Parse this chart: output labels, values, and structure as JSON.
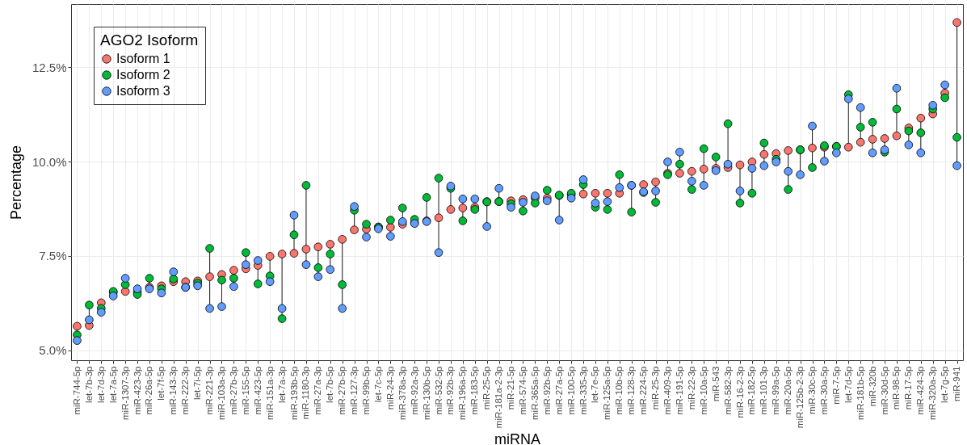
{
  "chart_data": {
    "type": "scatter",
    "xlabel": "miRNA",
    "ylabel": "Percentage",
    "legend_title": "AGO2 Isoform",
    "legend": "top left",
    "grid": true,
    "marker": "circle",
    "categories": [
      "miR-744-5p",
      "let-7b-3p",
      "let-7d-3p",
      "let-7a-5p",
      "miR-1307-3p",
      "miR-423-3p",
      "miR-26a-5p",
      "let-7f-5p",
      "miR-143-3p",
      "miR-222-3p",
      "let-7i-5p",
      "miR-221-3p",
      "miR-103a-3p",
      "miR-27b-3p",
      "miR-155-5p",
      "miR-423-5p",
      "miR-151a-3p",
      "let-7a-3p",
      "miR-193b-5p",
      "miR-1180-3p",
      "miR-27a-3p",
      "let-7b-5p",
      "miR-27b-5p",
      "miR-127-3p",
      "miR-99b-5p",
      "let-7c-5p",
      "miR-24-3p",
      "miR-378a-3p",
      "miR-92a-3p",
      "miR-130b-5p",
      "miR-532-5p",
      "miR-92b-3p",
      "miR-196a-5p",
      "miR-183-5p",
      "miR-25-5p",
      "miR-181a-2-3p",
      "miR-21-5p",
      "miR-574-5p",
      "miR-365a-5p",
      "miR-92b-5p",
      "miR-27a-5p",
      "miR-100-5p",
      "miR-335-3p",
      "let-7e-5p",
      "miR-125a-5p",
      "miR-10b-5p",
      "miR-128-3p",
      "miR-224-5p",
      "miR-25-3p",
      "miR-409-3p",
      "miR-191-5p",
      "miR-22-3p",
      "miR-10a-5p",
      "miR-543",
      "miR-582-3p",
      "miR-16-2-3p",
      "miR-182-5p",
      "miR-101-3p",
      "miR-99a-5p",
      "miR-20a-5p",
      "miR-125b-2-3p",
      "miR-30c-5p",
      "miR-30a-5p",
      "miR-7-5p",
      "let-7d-5p",
      "miR-181b-5p",
      "miR-320b",
      "miR-30d-5p",
      "miR-98-5p",
      "miR-17-5p",
      "miR-424-3p",
      "miR-320a-3p",
      "let-7g-5p",
      "miR-941"
    ],
    "ylim": [
      4.74,
      14.17
    ],
    "yticks": [
      {
        "value": 5,
        "label": "5.0%"
      },
      {
        "value": 7.5,
        "label": "7.5%"
      },
      {
        "value": 10,
        "label": "10.0%"
      },
      {
        "value": 12.5,
        "label": "12.5%"
      }
    ],
    "series": [
      {
        "name": "Isoform 1",
        "color": "#f8766d",
        "values": [
          5.64,
          5.66,
          6.26,
          6.54,
          6.56,
          6.55,
          6.67,
          6.71,
          6.82,
          6.82,
          6.84,
          6.95,
          7.01,
          7.12,
          7.16,
          7.25,
          7.49,
          7.55,
          7.57,
          7.68,
          7.74,
          7.81,
          7.94,
          8.19,
          8.21,
          8.27,
          8.26,
          8.34,
          8.38,
          8.43,
          8.51,
          8.73,
          8.77,
          8.79,
          8.94,
          8.94,
          8.96,
          8.99,
          9.03,
          9.03,
          9.1,
          9.12,
          9.14,
          9.16,
          9.16,
          9.16,
          9.37,
          9.39,
          9.46,
          9.69,
          9.69,
          9.74,
          9.8,
          9.82,
          9.84,
          9.91,
          9.99,
          10.19,
          10.21,
          10.29,
          10.31,
          10.36,
          10.38,
          10.4,
          10.38,
          10.51,
          10.59,
          10.61,
          10.68,
          10.89,
          11.15,
          11.26,
          11.81,
          13.68
        ]
      },
      {
        "name": "Isoform 2",
        "color": "#00ba38",
        "values": [
          5.41,
          6.2,
          6.11,
          6.56,
          6.74,
          6.48,
          6.91,
          6.63,
          6.89,
          6.67,
          6.78,
          7.7,
          6.86,
          6.91,
          7.59,
          6.76,
          6.97,
          5.84,
          8.06,
          9.37,
          7.19,
          7.55,
          6.74,
          8.71,
          8.34,
          8.26,
          8.45,
          8.77,
          8.47,
          9.05,
          9.56,
          9.29,
          8.43,
          8.73,
          8.93,
          8.94,
          8.88,
          8.69,
          8.9,
          9.24,
          9.11,
          9.16,
          9.39,
          8.79,
          8.73,
          9.65,
          8.66,
          9.18,
          8.92,
          9.65,
          9.93,
          9.26,
          10.34,
          10.12,
          11.0,
          8.9,
          9.16,
          10.49,
          10.06,
          9.26,
          10.31,
          9.84,
          10.42,
          10.4,
          11.77,
          10.91,
          11.04,
          10.25,
          11.39,
          10.81,
          10.76,
          11.39,
          11.69,
          10.64
        ]
      },
      {
        "name": "Isoform 3",
        "color": "#619cff",
        "values": [
          5.26,
          5.81,
          6.01,
          6.44,
          6.91,
          6.63,
          6.63,
          6.52,
          7.08,
          6.67,
          6.71,
          6.11,
          6.16,
          6.69,
          7.27,
          7.38,
          6.82,
          6.11,
          8.58,
          7.27,
          6.95,
          7.14,
          6.11,
          8.81,
          8.0,
          8.22,
          8.02,
          8.41,
          8.36,
          8.41,
          7.59,
          9.35,
          9.01,
          9.01,
          8.28,
          9.29,
          8.79,
          8.92,
          9.09,
          8.96,
          8.45,
          9.03,
          9.52,
          8.9,
          8.94,
          9.31,
          9.37,
          9.2,
          9.22,
          9.99,
          10.25,
          9.48,
          9.37,
          9.76,
          9.93,
          9.22,
          9.82,
          9.89,
          9.99,
          9.74,
          9.65,
          10.94,
          10.01,
          10.23,
          11.66,
          11.43,
          10.23,
          10.31,
          11.94,
          10.44,
          10.23,
          11.49,
          12.03,
          9.89
        ]
      }
    ]
  }
}
